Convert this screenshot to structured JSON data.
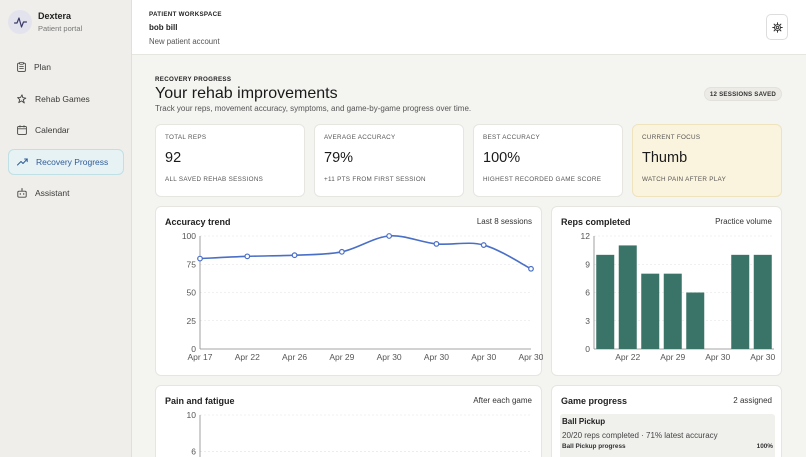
{
  "brand": {
    "name": "Dextera",
    "subtitle": "Patient portal"
  },
  "nav": {
    "items": [
      {
        "label": "Plan",
        "icon": "clipboard-icon"
      },
      {
        "label": "Rehab Games",
        "icon": "puzzle-icon"
      },
      {
        "label": "Calendar",
        "icon": "calendar-icon"
      },
      {
        "label": "Recovery Progress",
        "icon": "trend-up-icon",
        "active": true
      },
      {
        "label": "Assistant",
        "icon": "robot-icon"
      }
    ]
  },
  "workspace": {
    "label": "PATIENT WORKSPACE",
    "name": "bob bill",
    "subtitle": "New patient account"
  },
  "header": {
    "eyebrow": "RECOVERY PROGRESS",
    "title": "Your rehab improvements",
    "subtitle": "Track your reps, movement accuracy, symptoms, and game-by-game progress over time.",
    "badge": "12 SESSIONS SAVED"
  },
  "stats": [
    {
      "label": "TOTAL REPS",
      "value": "92",
      "caption": "ALL SAVED REHAB SESSIONS"
    },
    {
      "label": "AVERAGE ACCURACY",
      "value": "79%",
      "caption": "+11 PTS FROM FIRST SESSION"
    },
    {
      "label": "BEST ACCURACY",
      "value": "100%",
      "caption": "HIGHEST RECORDED GAME SCORE"
    },
    {
      "label": "CURRENT FOCUS",
      "value": "Thumb",
      "caption": "WATCH PAIN AFTER PLAY"
    }
  ],
  "accuracy_panel": {
    "title": "Accuracy trend",
    "meta": "Last 8 sessions"
  },
  "reps_panel": {
    "title": "Reps completed",
    "meta": "Practice volume"
  },
  "pain_panel": {
    "title": "Pain and fatigue",
    "meta": "After each game"
  },
  "games_panel": {
    "title": "Game progress",
    "meta": "2 assigned",
    "items": [
      {
        "name": "Ball Pickup",
        "detail": "20/20 reps completed · 71% latest accuracy",
        "progress_label": "Ball Pickup progress",
        "progress_value": "100%",
        "progress": 1.0
      }
    ]
  },
  "colors": {
    "accent": "#4a6fc7",
    "bar": "#3a7468",
    "focus_bg": "#faf3dd"
  },
  "chart_data": [
    {
      "type": "line",
      "title": "Accuracy trend",
      "x": [
        "Apr 17",
        "Apr 22",
        "Apr 26",
        "Apr 29",
        "Apr 30",
        "Apr 30",
        "Apr 30",
        "Apr 30"
      ],
      "series": [
        {
          "values": [
            80,
            82,
            83,
            86,
            100,
            93,
            92,
            71
          ]
        }
      ],
      "yticks": [
        0,
        25,
        50,
        75,
        100
      ],
      "ylim": [
        0,
        100
      ],
      "grid": true
    },
    {
      "type": "bar",
      "title": "Reps completed",
      "categories": [
        "",
        "Apr 22",
        "",
        "Apr 29",
        "",
        "Apr 30",
        "",
        "Apr 30"
      ],
      "values": [
        10,
        11,
        8,
        8,
        6,
        0,
        10,
        10
      ],
      "yticks": [
        0,
        3,
        6,
        9,
        12
      ],
      "ylim": [
        0,
        12
      ],
      "grid": true
    },
    {
      "type": "line",
      "title": "Pain and fatigue",
      "yticks": [
        6,
        10
      ],
      "ylim": [
        0,
        10
      ],
      "grid": true
    }
  ]
}
